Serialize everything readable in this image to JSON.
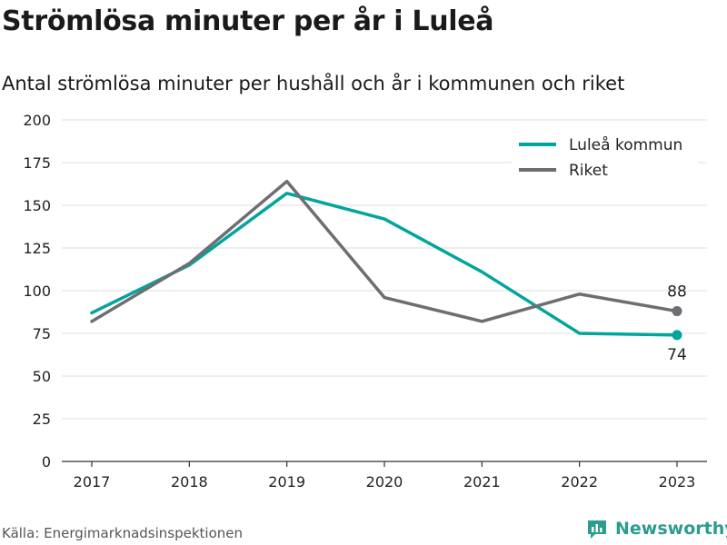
{
  "title": "Strömlösa minuter per år i Luleå",
  "subtitle": "Antal strömlösa minuter per hushåll och år i kommunen och riket",
  "source": "Källa: Energimarknadsinspektionen",
  "brand": {
    "name": "Newsworthy",
    "icon": "newsworthy-logo-icon"
  },
  "colors": {
    "lulea": "#00a59b",
    "riket": "#6d6d72",
    "grid": "#dcdcdc",
    "axis": "#333333"
  },
  "chart_data": {
    "type": "line",
    "x": [
      "2017",
      "2018",
      "2019",
      "2020",
      "2021",
      "2022",
      "2023"
    ],
    "ylim": [
      0,
      200
    ],
    "yticks": [
      0,
      25,
      50,
      75,
      100,
      125,
      150,
      175,
      200
    ],
    "grid": true,
    "legend_placement": "top-right",
    "series": [
      {
        "name": "Luleå kommun",
        "color": "#00a59b",
        "values": [
          87,
          115,
          157,
          142,
          111,
          75,
          74
        ],
        "end_label": "74"
      },
      {
        "name": "Riket",
        "color": "#6d6d72",
        "values": [
          82,
          116,
          164,
          96,
          82,
          98,
          88
        ],
        "end_label": "88"
      }
    ]
  }
}
